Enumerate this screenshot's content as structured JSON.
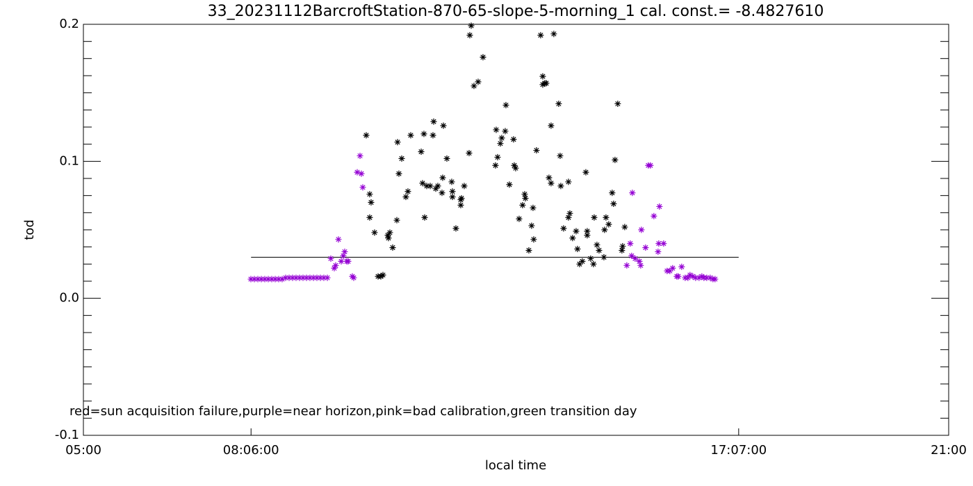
{
  "chart_data": {
    "type": "scatter",
    "title": "33_20231112BarcroftStation-870-65-slope-5-morning_1 cal. const.= -8.4827610",
    "xlabel": "local time",
    "ylabel": "tod",
    "annotation": "red=sun acquisition failure,purple=near horizon,pink=bad calibration,green transition day",
    "xlim": [
      5,
      21
    ],
    "ylim": [
      -0.1,
      0.2
    ],
    "xticks": [
      {
        "value": 5,
        "label": "05:00"
      },
      {
        "value": 8.1,
        "label": "08:06:00"
      },
      {
        "value": 17.1167,
        "label": "17:07:00"
      },
      {
        "value": 21,
        "label": "21:00"
      }
    ],
    "yticks": [
      -0.1,
      {
        "value": 0,
        "label": "0.0"
      },
      0.1,
      0.2
    ],
    "yminor": 8,
    "hline": {
      "y": 0.03,
      "x": [
        8.1,
        17.1167
      ]
    },
    "series": [
      {
        "color": "#000000",
        "x": [
          10.23,
          10.294,
          10.32,
          10.294,
          10.384,
          10.449,
          10.5,
          10.539,
          10.629,
          10.667,
          10.641,
          10.719,
          10.796,
          10.809,
          10.834,
          10.886,
          10.963,
          11.001,
          11.053,
          11.246,
          11.271,
          11.297,
          11.31,
          11.349,
          11.413,
          11.464,
          11.477,
          11.516,
          11.554,
          11.631,
          11.657,
          11.644,
          11.721,
          11.811,
          11.824,
          11.824,
          11.888,
          11.978,
          11.978,
          11.991,
          12.042,
          12.132,
          12.145,
          12.171,
          12.222,
          12.299,
          12.389,
          12.62,
          12.633,
          12.659,
          12.71,
          12.736,
          12.8,
          12.813,
          12.877,
          12.954,
          12.967,
          12.993,
          13.057,
          13.121,
          13.16,
          13.173,
          13.237,
          13.288,
          13.314,
          13.327,
          13.378,
          13.455,
          13.494,
          13.494,
          13.532,
          13.558,
          13.609,
          13.648,
          13.648,
          13.699,
          13.789,
          13.815,
          13.828,
          13.879,
          13.969,
          13.969,
          13.995,
          14.046,
          14.111,
          14.136,
          14.175,
          14.226,
          14.291,
          14.316,
          14.316,
          14.38,
          14.432,
          14.445,
          14.496,
          14.535,
          14.625,
          14.637,
          14.663,
          14.714,
          14.778,
          14.804,
          14.83,
          14.881,
          14.958,
          14.971,
          15.01
        ],
        "values": [
          0.119,
          0.076,
          0.07,
          0.059,
          0.048,
          0.016,
          0.016,
          0.017,
          0.046,
          0.048,
          0.044,
          0.037,
          0.057,
          0.114,
          0.091,
          0.102,
          0.074,
          0.078,
          0.119,
          0.107,
          0.084,
          0.12,
          0.059,
          0.082,
          0.082,
          0.119,
          0.129,
          0.08,
          0.082,
          0.077,
          0.126,
          0.088,
          0.102,
          0.085,
          0.078,
          0.074,
          0.051,
          0.072,
          0.068,
          0.073,
          0.082,
          0.106,
          0.192,
          0.199,
          0.155,
          0.158,
          0.176,
          0.097,
          0.123,
          0.103,
          0.113,
          0.117,
          0.122,
          0.141,
          0.083,
          0.116,
          0.097,
          0.095,
          0.058,
          0.068,
          0.076,
          0.073,
          0.035,
          0.053,
          0.066,
          0.043,
          0.108,
          0.192,
          0.162,
          0.156,
          0.157,
          0.157,
          0.088,
          0.126,
          0.084,
          0.193,
          0.142,
          0.104,
          0.082,
          0.051,
          0.085,
          0.059,
          0.062,
          0.044,
          0.049,
          0.036,
          0.025,
          0.027,
          0.092,
          0.049,
          0.046,
          0.029,
          0.025,
          0.059,
          0.039,
          0.035,
          0.03,
          0.05,
          0.059,
          0.054,
          0.077,
          0.069,
          0.101,
          0.142,
          0.035,
          0.038,
          0.052
        ]
      },
      {
        "color": "#9400d3",
        "x": [
          8.097,
          8.161,
          8.226,
          8.29,
          8.354,
          8.418,
          8.483,
          8.547,
          8.611,
          8.675,
          8.74,
          8.804,
          8.868,
          8.932,
          8.997,
          9.061,
          9.125,
          9.189,
          9.254,
          9.318,
          9.382,
          9.446,
          9.511,
          9.575,
          9.639,
          9.665,
          9.716,
          9.768,
          9.806,
          9.832,
          9.87,
          9.896,
          9.973,
          9.999,
          10.063,
          10.115,
          10.14,
          10.166,
          15.048,
          15.112,
          15.151,
          15.138,
          15.202,
          15.28,
          15.305,
          15.318,
          15.395,
          15.446,
          15.485,
          15.549,
          15.626,
          15.639,
          15.652,
          15.729,
          15.793,
          15.845,
          15.896,
          15.973,
          15.999,
          16.063,
          16.127,
          16.179,
          16.217,
          16.269,
          16.32,
          16.384,
          16.436,
          16.474,
          16.526,
          16.59,
          16.641,
          16.68
        ],
        "values": [
          0.014,
          0.014,
          0.014,
          0.014,
          0.014,
          0.014,
          0.014,
          0.014,
          0.014,
          0.014,
          0.015,
          0.015,
          0.015,
          0.015,
          0.015,
          0.015,
          0.015,
          0.015,
          0.015,
          0.015,
          0.015,
          0.015,
          0.015,
          0.029,
          0.022,
          0.024,
          0.043,
          0.027,
          0.031,
          0.034,
          0.027,
          0.027,
          0.016,
          0.015,
          0.092,
          0.104,
          0.091,
          0.081,
          0.024,
          0.04,
          0.077,
          0.031,
          0.029,
          0.027,
          0.024,
          0.05,
          0.037,
          0.097,
          0.097,
          0.06,
          0.034,
          0.04,
          0.067,
          0.04,
          0.02,
          0.02,
          0.022,
          0.016,
          0.016,
          0.023,
          0.015,
          0.015,
          0.017,
          0.016,
          0.015,
          0.015,
          0.016,
          0.015,
          0.015,
          0.015,
          0.014,
          0.014
        ]
      }
    ]
  }
}
